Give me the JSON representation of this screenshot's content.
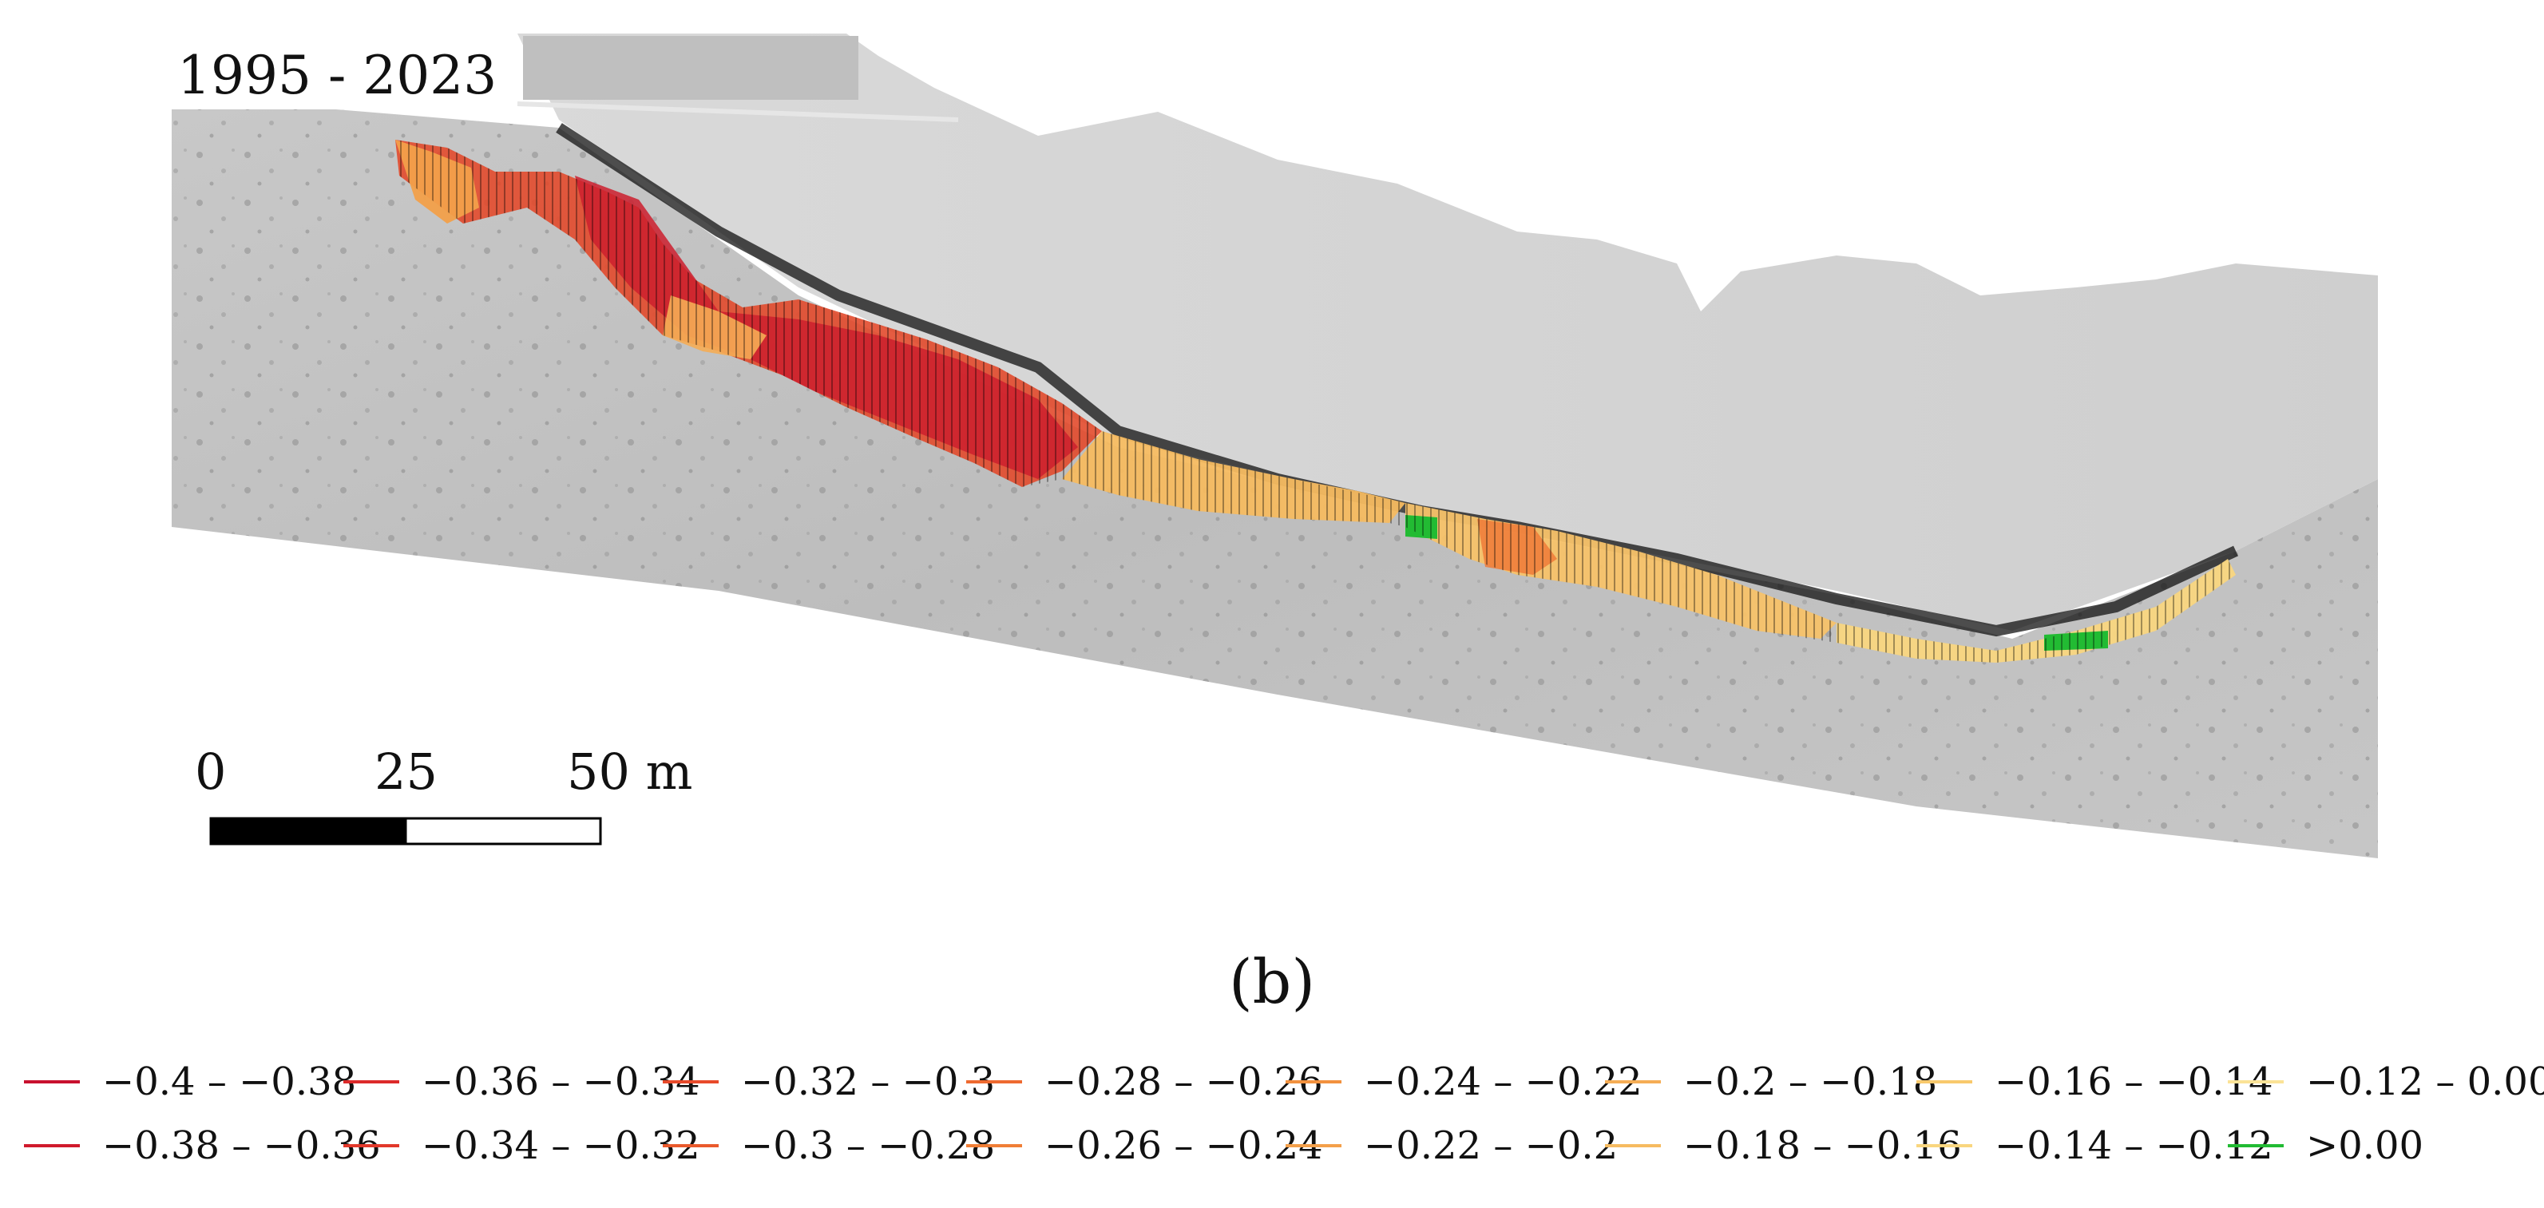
{
  "map": {
    "period_label": "1995 - 2023",
    "panel_label": "(b)",
    "scale_bar": {
      "labels": [
        "0",
        "25",
        "50 m"
      ],
      "unit": "m"
    }
  },
  "legend": {
    "rows": [
      [
        {
          "label": "−0.4 – −0.38",
          "color": "#c8102e"
        },
        {
          "label": "−0.36 – −0.34",
          "color": "#dc2a2a"
        },
        {
          "label": "−0.32 – −0.3",
          "color": "#e84a2a"
        },
        {
          "label": "−0.28 – −0.26",
          "color": "#ee6a30"
        },
        {
          "label": "−0.24 – −0.22",
          "color": "#f2913e"
        },
        {
          "label": "−0.2 – −0.18",
          "color": "#f5ad55"
        },
        {
          "label": "−0.16 – −0.14",
          "color": "#f8c96c"
        },
        {
          "label": "−0.12 – 0.00",
          "color": "#fbe397"
        }
      ],
      [
        {
          "label": "−0.38 – −0.36",
          "color": "#d01a2c"
        },
        {
          "label": "−0.34 – −0.32",
          "color": "#e2382a"
        },
        {
          "label": "−0.3 – −0.28",
          "color": "#ea5a2c"
        },
        {
          "label": "−0.26 – −0.24",
          "color": "#f07e36"
        },
        {
          "label": "−0.22 – −0.2",
          "color": "#f4a04a"
        },
        {
          "label": "−0.18 – −0.16",
          "color": "#f6bb60"
        },
        {
          "label": "−0.14 – −0.12",
          "color": "#f9d67f"
        },
        {
          "label": ">0.00",
          "color": "#22bb33"
        }
      ]
    ]
  }
}
